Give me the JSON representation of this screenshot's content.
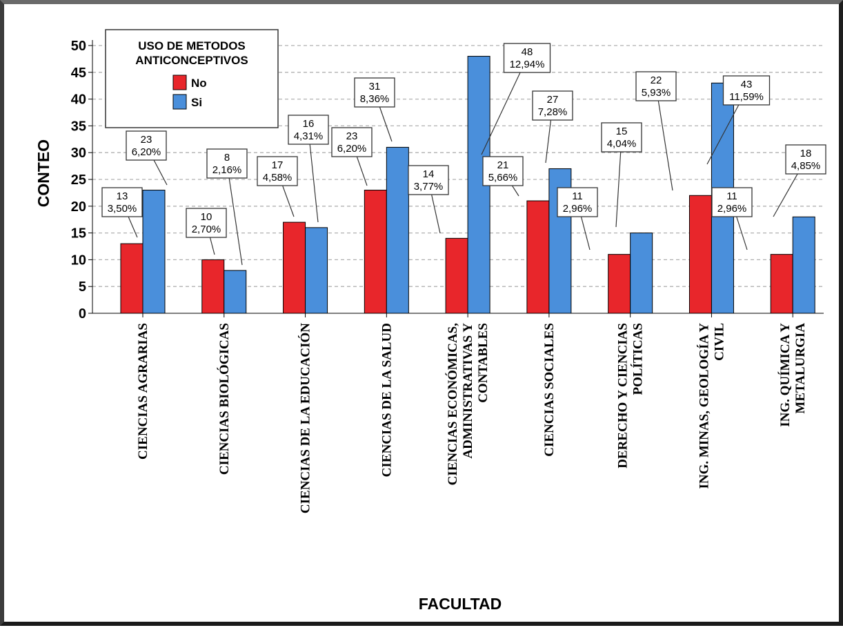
{
  "chart_data": {
    "type": "bar",
    "title": "",
    "xlabel": "FACULTAD",
    "ylabel": "CONTEO",
    "ylim": [
      0,
      50
    ],
    "yticks": [
      0,
      5,
      10,
      15,
      20,
      25,
      30,
      35,
      40,
      45,
      50
    ],
    "grid": "horizontal dashed",
    "categories": [
      [
        "CIENCIAS AGRARIAS"
      ],
      [
        "CIENCIAS BIOLÓGICAS"
      ],
      [
        "CIENCIAS DE LA EDUCACIÓN"
      ],
      [
        "CIENCIAS DE LA SALUD"
      ],
      [
        "CIENCIAS ECONÓMICAS,",
        "ADMINISTRATIVAS Y",
        "CONTABLES"
      ],
      [
        "CIENCIAS SOCIALES"
      ],
      [
        "DERECHO Y CIENCIAS",
        "POLÍTICAS"
      ],
      [
        "ING. MINAS, GEOLOGÍA Y",
        "CIVIL"
      ],
      [
        "ING. QUÍMICA Y",
        "METALURGIA"
      ]
    ],
    "legend": {
      "title_lines": [
        "USO DE METODOS",
        "ANTICONCEPTIVOS"
      ],
      "placement": "top-left"
    },
    "series": [
      {
        "name": "No",
        "color": "#e8262b",
        "values": [
          13,
          10,
          17,
          23,
          14,
          21,
          11,
          22,
          11
        ],
        "percent_labels": [
          "3,50%",
          "2,70%",
          "4,58%",
          "6,20%",
          "3,77%",
          "5,66%",
          "2,96%",
          "5,93%",
          "2,96%"
        ]
      },
      {
        "name": "Si",
        "color": "#4a8fdb",
        "values": [
          23,
          8,
          16,
          31,
          48,
          27,
          15,
          43,
          18
        ],
        "percent_labels": [
          "6,20%",
          "2,16%",
          "4,31%",
          "8,36%",
          "12,94%",
          "7,28%",
          "4,04%",
          "11,59%",
          "4,85%"
        ]
      }
    ]
  }
}
